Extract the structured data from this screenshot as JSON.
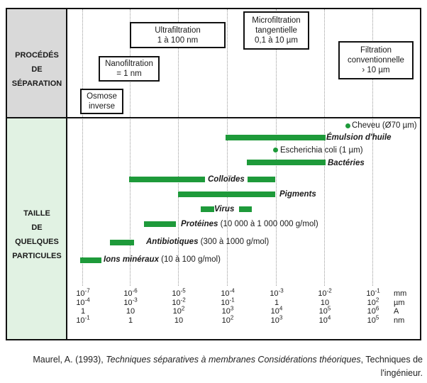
{
  "row_labels": {
    "procedes": "PROCÉDÉS\nDE\nSÉPARATION",
    "taille": "TAILLE\nDE\nQUELQUES\nPARTICULES"
  },
  "processes": [
    {
      "id": "osmose",
      "label": "Osmose\ninverse"
    },
    {
      "id": "nano",
      "label": "Nanofiltration\n= 1 nm"
    },
    {
      "id": "ultra",
      "label": "Ultrafiltration\n1 à 100 nm"
    },
    {
      "id": "micro",
      "label": "Microfiltration\ntangentielle\n0,1 à 10 µm"
    },
    {
      "id": "filtration",
      "label": "Filtration\nconventionnelle\n› 10 µm"
    }
  ],
  "particles": [
    {
      "id": "cheveu",
      "name": "Cheveu",
      "detail": "(Ø70 µm)",
      "italic": false
    },
    {
      "id": "emulsion",
      "name": "Émulsion d'huile",
      "detail": "",
      "italic": true
    },
    {
      "id": "ecoli",
      "name": "Escherichia coli",
      "detail": "(1 µm)",
      "italic": false
    },
    {
      "id": "bacteries",
      "name": "Bactéries",
      "detail": "",
      "italic": true
    },
    {
      "id": "colloides",
      "name": "Colloïdes",
      "detail": "",
      "italic": true
    },
    {
      "id": "pigments",
      "name": "Pigments",
      "detail": "",
      "italic": true
    },
    {
      "id": "virus",
      "name": "Virus",
      "detail": "",
      "italic": true
    },
    {
      "id": "proteines",
      "name": "Protéines",
      "detail": "(10 000 à 1 000 000 g/mol)",
      "italic": true
    },
    {
      "id": "antibiotiques",
      "name": "Antibiotiques",
      "detail": "(300 à 1000 g/mol)",
      "italic": true
    },
    {
      "id": "ions",
      "name": "Ions minéraux",
      "detail": "(10 à 100 g/mol)",
      "italic": true
    }
  ],
  "scale": {
    "columns": [
      {
        "mm": "10",
        "mm_exp": "-7",
        "um": "10",
        "um_exp": "-4",
        "A": "1",
        "A_exp": "",
        "nm": "10",
        "nm_exp": "-1"
      },
      {
        "mm": "10",
        "mm_exp": "-6",
        "um": "10",
        "um_exp": "-3",
        "A": "10",
        "A_exp": "",
        "nm": "1",
        "nm_exp": ""
      },
      {
        "mm": "10",
        "mm_exp": "-5",
        "um": "10",
        "um_exp": "-2",
        "A": "10",
        "A_exp": "2",
        "nm": "10",
        "nm_exp": ""
      },
      {
        "mm": "10",
        "mm_exp": "-4",
        "um": "10",
        "um_exp": "-1",
        "A": "10",
        "A_exp": "3",
        "nm": "10",
        "nm_exp": "2"
      },
      {
        "mm": "10",
        "mm_exp": "-3",
        "um": "1",
        "um_exp": "",
        "A": "10",
        "A_exp": "4",
        "nm": "10",
        "nm_exp": "3"
      },
      {
        "mm": "10",
        "mm_exp": "-2",
        "um": "10",
        "um_exp": "",
        "A": "10",
        "A_exp": "5",
        "nm": "10",
        "nm_exp": "4"
      },
      {
        "mm": "10",
        "mm_exp": "-1",
        "um": "10",
        "um_exp": "2",
        "A": "10",
        "A_exp": "6",
        "nm": "10",
        "nm_exp": "5"
      }
    ],
    "units": [
      "mm",
      "µm",
      "A",
      "nm"
    ]
  },
  "caption": {
    "author": "Maurel, A. (1993),",
    "title": "Techniques séparatives à membranes Considérations théoriques",
    "publisher": ", Techniques de l'ingénieur."
  },
  "colors": {
    "bar": "#1e9a3a",
    "header_bg": "#d9d9d9",
    "body_bg": "#e1f2e3"
  }
}
